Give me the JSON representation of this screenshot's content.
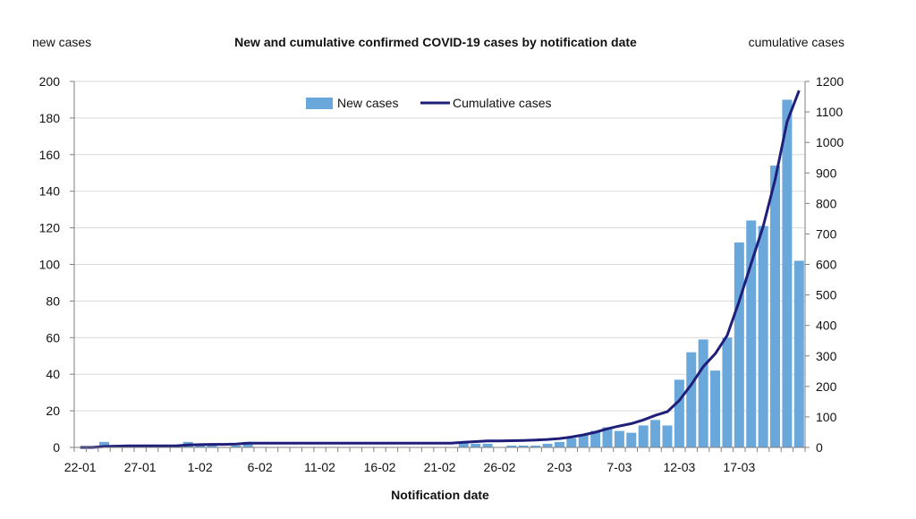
{
  "chart_data": {
    "type": "bar",
    "title": "New and cumulative confirmed COVID-19 cases by notification date",
    "xlabel": "Notification date",
    "ylabel_left": "new cases",
    "ylabel_right": "cumulative cases",
    "ylim_left": [
      0,
      200
    ],
    "yticks_left": [
      0,
      20,
      40,
      60,
      80,
      100,
      120,
      140,
      160,
      180,
      200
    ],
    "ylim_right": [
      0,
      1200
    ],
    "yticks_right": [
      0,
      100,
      200,
      300,
      400,
      500,
      600,
      700,
      800,
      900,
      1000,
      1100,
      1200
    ],
    "x": [
      "22-01",
      "23-01",
      "24-01",
      "25-01",
      "26-01",
      "27-01",
      "28-01",
      "29-01",
      "30-01",
      "31-01",
      "1-02",
      "2-02",
      "3-02",
      "4-02",
      "5-02",
      "6-02",
      "7-02",
      "8-02",
      "9-02",
      "10-02",
      "11-02",
      "12-02",
      "13-02",
      "14-02",
      "15-02",
      "16-02",
      "17-02",
      "18-02",
      "19-02",
      "20-02",
      "21-02",
      "22-02",
      "23-02",
      "24-02",
      "25-02",
      "26-02",
      "27-02",
      "28-02",
      "29-02",
      "1-03",
      "2-03",
      "3-03",
      "4-03",
      "5-03",
      "6-03",
      "7-03",
      "8-03",
      "9-03",
      "10-03",
      "11-03",
      "12-03",
      "13-03",
      "14-03",
      "15-03",
      "16-03",
      "17-03",
      "18-03",
      "19-03",
      "20-03",
      "21-03",
      "22-03"
    ],
    "x_tick_labels": [
      "22-01",
      "27-01",
      "1-02",
      "6-02",
      "11-02",
      "16-02",
      "21-02",
      "26-02",
      "2-03",
      "7-03",
      "12-03",
      "17-03"
    ],
    "series": [
      {
        "name": "New cases",
        "type": "bar",
        "axis": "left",
        "color": "#6aa8dc",
        "values": [
          0,
          0,
          3,
          1,
          1,
          0,
          0,
          0,
          0,
          3,
          1,
          1,
          0,
          1,
          3,
          0,
          0,
          0,
          0,
          0,
          0,
          0,
          0,
          0,
          0,
          0,
          0,
          0,
          0,
          0,
          0,
          0,
          3,
          2,
          2,
          0,
          1,
          1,
          1,
          2,
          3,
          5,
          7,
          9,
          11,
          9,
          8,
          12,
          15,
          12,
          37,
          52,
          59,
          42,
          60,
          112,
          124,
          121,
          154,
          190,
          102
        ]
      },
      {
        "name": "Cumulative cases",
        "type": "line",
        "axis": "right",
        "color": "#1f1f7a",
        "values": [
          0,
          0,
          3,
          4,
          5,
          5,
          5,
          5,
          5,
          8,
          9,
          10,
          10,
          11,
          14,
          14,
          14,
          14,
          14,
          14,
          14,
          14,
          14,
          14,
          14,
          14,
          14,
          14,
          14,
          14,
          14,
          14,
          17,
          19,
          21,
          21,
          22,
          23,
          24,
          26,
          29,
          34,
          41,
          50,
          61,
          70,
          78,
          90,
          105,
          117,
          154,
          206,
          265,
          307,
          367,
          479,
          603,
          724,
          878,
          1068,
          1170
        ]
      }
    ],
    "legend_position": "top-center",
    "grid": true
  }
}
